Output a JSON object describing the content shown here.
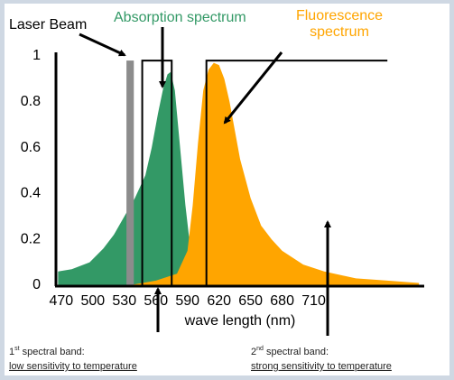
{
  "chart_data": {
    "type": "area",
    "xlabel": "wave length (nm)",
    "xlim": [
      465,
      815
    ],
    "ylim": [
      0,
      1
    ],
    "xticks": [
      470,
      500,
      530,
      560,
      590,
      620,
      650,
      680,
      710
    ],
    "yticks": [
      0,
      0.2,
      0.4,
      0.6,
      0.8,
      1
    ],
    "grid": false,
    "series": [
      {
        "name": "Absorption spectrum",
        "color": "#339966",
        "x": [
          467,
          480,
          497,
          510,
          520,
          530,
          540,
          550,
          556,
          562,
          567,
          571,
          574,
          578,
          583,
          588,
          593,
          598,
          603
        ],
        "values": [
          0.06,
          0.07,
          0.1,
          0.16,
          0.22,
          0.3,
          0.38,
          0.48,
          0.6,
          0.75,
          0.86,
          0.92,
          0.93,
          0.85,
          0.6,
          0.35,
          0.15,
          0.05,
          0
        ]
      },
      {
        "name": "Fluorescence spectrum",
        "color": "#ffa500",
        "x": [
          535,
          560,
          580,
          590,
          595,
          600,
          605,
          610,
          615,
          620,
          625,
          630,
          640,
          650,
          660,
          670,
          680,
          690,
          700,
          720,
          750,
          780,
          810
        ],
        "values": [
          0,
          0.02,
          0.05,
          0.15,
          0.35,
          0.62,
          0.85,
          0.94,
          0.97,
          0.96,
          0.9,
          0.8,
          0.55,
          0.38,
          0.26,
          0.2,
          0.15,
          0.12,
          0.09,
          0.06,
          0.03,
          0.02,
          0.01
        ]
      }
    ],
    "laser_beam": {
      "label": "Laser Beam",
      "x": [
        532,
        539
      ],
      "value": 0.98,
      "color": "#8c8c8c"
    },
    "bands": [
      {
        "x": [
          547,
          575
        ],
        "value": 0.98,
        "outline": "closed",
        "number": "1",
        "suffix": "st",
        "title": " spectral band:",
        "caption": "low sensitivity to temperature"
      },
      {
        "x": [
          608,
          780
        ],
        "value": 0.98,
        "outline": "open",
        "number": "2",
        "suffix": "nd",
        "title": " spectral band:",
        "caption": "strong sensitivity to temperature"
      }
    ]
  }
}
